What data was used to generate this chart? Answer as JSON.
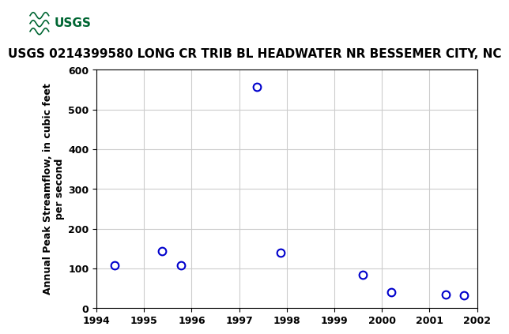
{
  "title": "USGS 0214399580 LONG CR TRIB BL HEADWATER NR BESSEMER CITY, NC",
  "ylabel": "Annual Peak Streamflow, in cubic feet\nper second",
  "years": [
    1994.38,
    1995.37,
    1995.78,
    1997.37,
    1997.87,
    1999.6,
    2000.2,
    2001.35,
    2001.72
  ],
  "values": [
    107,
    143,
    108,
    557,
    140,
    85,
    40,
    35,
    33
  ],
  "xlim": [
    1994,
    2002
  ],
  "ylim": [
    0,
    600
  ],
  "xticks": [
    1994,
    1995,
    1996,
    1997,
    1998,
    1999,
    2000,
    2001,
    2002
  ],
  "yticks": [
    0,
    100,
    200,
    300,
    400,
    500,
    600
  ],
  "marker_color": "#0000cc",
  "marker_size": 7,
  "grid_color": "#cccccc",
  "bg_color": "#ffffff",
  "header_color": "#006633",
  "title_fontsize": 11,
  "axis_fontsize": 9,
  "tick_fontsize": 9
}
